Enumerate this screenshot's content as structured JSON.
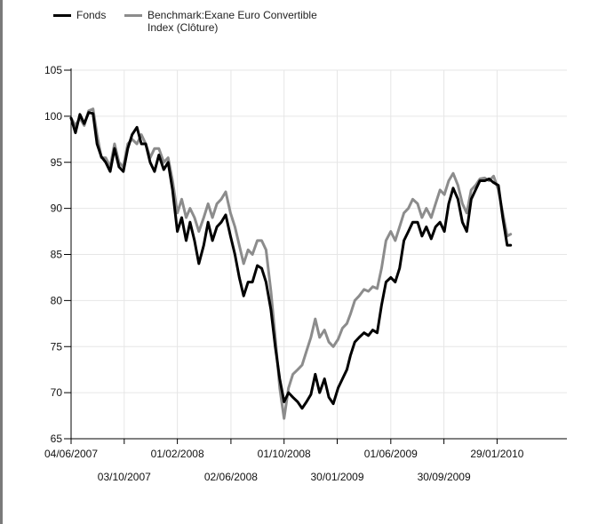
{
  "chart_data": {
    "type": "line",
    "ylim": [
      65,
      105
    ],
    "yticks": [
      "65",
      "70",
      "75",
      "80",
      "85",
      "90",
      "95",
      "100",
      "105"
    ],
    "x_start": "04/06/2007",
    "x_end": "07/07/2010",
    "xticks_row1": [
      "04/06/2007",
      "01/02/2008",
      "01/10/2008",
      "01/06/2009",
      "29/01/2010"
    ],
    "xticks_row2": [
      "03/10/2007",
      "02/06/2008",
      "30/01/2009",
      "30/09/2009"
    ],
    "grid": true,
    "legend_position": "top-left",
    "series": [
      {
        "name": "Fonds",
        "color": "#000000",
        "points": [
          [
            "04/06/2007",
            99.8
          ],
          [
            "14/06/2007",
            98.2
          ],
          [
            "24/06/2007",
            100.2
          ],
          [
            "04/07/2007",
            99.2
          ],
          [
            "14/07/2007",
            100.4
          ],
          [
            "24/07/2007",
            100.3
          ],
          [
            "02/08/2007",
            97.0
          ],
          [
            "12/08/2007",
            95.6
          ],
          [
            "22/08/2007",
            95.0
          ],
          [
            "01/09/2007",
            94.0
          ],
          [
            "11/09/2007",
            96.5
          ],
          [
            "21/09/2007",
            94.5
          ],
          [
            "01/10/2007",
            94.0
          ],
          [
            "11/10/2007",
            96.5
          ],
          [
            "21/10/2007",
            98.0
          ],
          [
            "01/11/2007",
            98.8
          ],
          [
            "11/11/2007",
            97.0
          ],
          [
            "21/11/2007",
            97.0
          ],
          [
            "01/12/2007",
            95.0
          ],
          [
            "11/12/2007",
            94.0
          ],
          [
            "21/12/2007",
            95.8
          ],
          [
            "01/01/2008",
            94.2
          ],
          [
            "11/01/2008",
            95.0
          ],
          [
            "21/01/2008",
            92.0
          ],
          [
            "01/02/2008",
            87.5
          ],
          [
            "11/02/2008",
            89.0
          ],
          [
            "21/02/2008",
            86.5
          ],
          [
            "01/03/2008",
            88.5
          ],
          [
            "11/03/2008",
            86.5
          ],
          [
            "21/03/2008",
            84.0
          ],
          [
            "01/04/2008",
            86.0
          ],
          [
            "11/04/2008",
            88.5
          ],
          [
            "21/04/2008",
            86.5
          ],
          [
            "01/05/2008",
            88.0
          ],
          [
            "11/05/2008",
            88.5
          ],
          [
            "21/05/2008",
            89.3
          ],
          [
            "01/06/2008",
            87.0
          ],
          [
            "11/06/2008",
            85.0
          ],
          [
            "21/06/2008",
            82.5
          ],
          [
            "01/07/2008",
            80.5
          ],
          [
            "11/07/2008",
            82.0
          ],
          [
            "21/07/2008",
            82.0
          ],
          [
            "01/08/2008",
            83.8
          ],
          [
            "11/08/2008",
            83.5
          ],
          [
            "21/08/2008",
            82.0
          ],
          [
            "01/09/2008",
            79.0
          ],
          [
            "11/09/2008",
            75.0
          ],
          [
            "21/09/2008",
            71.5
          ],
          [
            "01/10/2008",
            69.0
          ],
          [
            "11/10/2008",
            70.0
          ],
          [
            "21/10/2008",
            69.5
          ],
          [
            "01/11/2008",
            69.0
          ],
          [
            "11/11/2008",
            68.3
          ],
          [
            "21/11/2008",
            69.0
          ],
          [
            "01/12/2008",
            69.8
          ],
          [
            "11/12/2008",
            72.0
          ],
          [
            "21/12/2008",
            70.0
          ],
          [
            "01/01/2009",
            71.5
          ],
          [
            "11/01/2009",
            69.5
          ],
          [
            "21/01/2009",
            68.8
          ],
          [
            "01/02/2009",
            70.5
          ],
          [
            "11/02/2009",
            71.5
          ],
          [
            "21/02/2009",
            72.5
          ],
          [
            "01/03/2009",
            74.0
          ],
          [
            "11/03/2009",
            75.5
          ],
          [
            "21/03/2009",
            76.0
          ],
          [
            "01/04/2009",
            76.5
          ],
          [
            "11/04/2009",
            76.2
          ],
          [
            "21/04/2009",
            76.8
          ],
          [
            "01/05/2009",
            76.5
          ],
          [
            "11/05/2009",
            79.5
          ],
          [
            "21/05/2009",
            82.0
          ],
          [
            "01/06/2009",
            82.5
          ],
          [
            "11/06/2009",
            82.0
          ],
          [
            "21/06/2009",
            83.5
          ],
          [
            "01/07/2009",
            86.5
          ],
          [
            "11/07/2009",
            87.5
          ],
          [
            "21/07/2009",
            88.5
          ],
          [
            "01/08/2009",
            88.5
          ],
          [
            "11/08/2009",
            87.0
          ],
          [
            "21/08/2009",
            88.0
          ],
          [
            "01/09/2009",
            86.7
          ],
          [
            "11/09/2009",
            88.0
          ],
          [
            "21/09/2009",
            88.5
          ],
          [
            "01/10/2009",
            87.5
          ],
          [
            "11/10/2009",
            90.5
          ],
          [
            "21/10/2009",
            92.2
          ],
          [
            "01/11/2009",
            91.0
          ],
          [
            "11/11/2009",
            88.5
          ],
          [
            "21/11/2009",
            87.5
          ],
          [
            "01/12/2009",
            91.0
          ],
          [
            "11/12/2009",
            92.0
          ],
          [
            "21/12/2009",
            93.0
          ],
          [
            "01/01/2010",
            93.0
          ],
          [
            "11/01/2010",
            93.2
          ],
          [
            "21/01/2010",
            92.8
          ],
          [
            "01/02/2010",
            92.5
          ],
          [
            "11/02/2010",
            89.0
          ],
          [
            "21/02/2010",
            86.0
          ],
          [
            "01/03/2010",
            86.0
          ]
        ]
      },
      {
        "name": "Benchmark:Exane Euro Convertible Index (Clôture)",
        "color": "#8c8c8c",
        "points": [
          [
            "04/06/2007",
            99.8
          ],
          [
            "14/06/2007",
            99.0
          ],
          [
            "24/06/2007",
            99.8
          ],
          [
            "04/07/2007",
            99.0
          ],
          [
            "14/07/2007",
            100.6
          ],
          [
            "24/07/2007",
            100.8
          ],
          [
            "02/08/2007",
            98.0
          ],
          [
            "12/08/2007",
            95.5
          ],
          [
            "22/08/2007",
            95.5
          ],
          [
            "01/09/2007",
            94.5
          ],
          [
            "11/09/2007",
            97.0
          ],
          [
            "21/09/2007",
            95.0
          ],
          [
            "01/10/2007",
            94.5
          ],
          [
            "11/10/2007",
            97.0
          ],
          [
            "21/10/2007",
            97.5
          ],
          [
            "01/11/2007",
            97.0
          ],
          [
            "11/11/2007",
            98.0
          ],
          [
            "21/11/2007",
            97.0
          ],
          [
            "01/12/2007",
            95.5
          ],
          [
            "11/12/2007",
            96.5
          ],
          [
            "21/12/2007",
            96.5
          ],
          [
            "01/01/2008",
            95.0
          ],
          [
            "11/01/2008",
            95.5
          ],
          [
            "21/01/2008",
            93.0
          ],
          [
            "01/02/2008",
            89.5
          ],
          [
            "11/02/2008",
            91.0
          ],
          [
            "21/02/2008",
            89.0
          ],
          [
            "01/03/2008",
            90.0
          ],
          [
            "11/03/2008",
            89.0
          ],
          [
            "21/03/2008",
            87.5
          ],
          [
            "01/04/2008",
            89.0
          ],
          [
            "11/04/2008",
            90.5
          ],
          [
            "21/04/2008",
            89.0
          ],
          [
            "01/05/2008",
            90.5
          ],
          [
            "11/05/2008",
            91.0
          ],
          [
            "21/05/2008",
            91.8
          ],
          [
            "01/06/2008",
            89.5
          ],
          [
            "11/06/2008",
            88.0
          ],
          [
            "21/06/2008",
            86.0
          ],
          [
            "01/07/2008",
            84.0
          ],
          [
            "11/07/2008",
            85.5
          ],
          [
            "21/07/2008",
            85.0
          ],
          [
            "01/08/2008",
            86.5
          ],
          [
            "11/08/2008",
            86.5
          ],
          [
            "21/08/2008",
            85.5
          ],
          [
            "01/09/2008",
            81.0
          ],
          [
            "11/09/2008",
            76.0
          ],
          [
            "21/09/2008",
            70.5
          ],
          [
            "01/10/2008",
            67.2
          ],
          [
            "11/10/2008",
            70.5
          ],
          [
            "21/10/2008",
            72.0
          ],
          [
            "01/11/2008",
            72.5
          ],
          [
            "11/11/2008",
            73.0
          ],
          [
            "21/11/2008",
            74.5
          ],
          [
            "01/12/2008",
            76.0
          ],
          [
            "11/12/2008",
            78.0
          ],
          [
            "21/12/2008",
            76.0
          ],
          [
            "01/01/2009",
            76.8
          ],
          [
            "11/01/2009",
            75.5
          ],
          [
            "21/01/2009",
            75.0
          ],
          [
            "01/02/2009",
            75.8
          ],
          [
            "11/02/2009",
            77.0
          ],
          [
            "21/02/2009",
            77.5
          ],
          [
            "01/03/2009",
            78.5
          ],
          [
            "11/03/2009",
            80.0
          ],
          [
            "21/03/2009",
            80.5
          ],
          [
            "01/04/2009",
            81.2
          ],
          [
            "11/04/2009",
            81.0
          ],
          [
            "21/04/2009",
            81.5
          ],
          [
            "01/05/2009",
            81.3
          ],
          [
            "11/05/2009",
            83.5
          ],
          [
            "21/05/2009",
            86.5
          ],
          [
            "01/06/2009",
            87.5
          ],
          [
            "11/06/2009",
            86.5
          ],
          [
            "21/06/2009",
            88.0
          ],
          [
            "01/07/2009",
            89.5
          ],
          [
            "11/07/2009",
            90.0
          ],
          [
            "21/07/2009",
            91.0
          ],
          [
            "01/08/2009",
            90.5
          ],
          [
            "11/08/2009",
            89.0
          ],
          [
            "21/08/2009",
            90.0
          ],
          [
            "01/09/2009",
            89.0
          ],
          [
            "11/09/2009",
            90.5
          ],
          [
            "21/09/2009",
            92.0
          ],
          [
            "01/10/2009",
            91.5
          ],
          [
            "11/10/2009",
            93.0
          ],
          [
            "21/10/2009",
            93.8
          ],
          [
            "01/11/2009",
            92.5
          ],
          [
            "11/11/2009",
            90.5
          ],
          [
            "21/11/2009",
            89.5
          ],
          [
            "01/12/2009",
            92.0
          ],
          [
            "11/12/2009",
            92.5
          ],
          [
            "21/12/2009",
            93.2
          ],
          [
            "01/01/2010",
            93.3
          ],
          [
            "11/01/2010",
            93.0
          ],
          [
            "21/01/2010",
            93.5
          ],
          [
            "01/02/2010",
            92.0
          ],
          [
            "11/02/2010",
            89.5
          ],
          [
            "21/02/2010",
            87.0
          ],
          [
            "01/03/2010",
            87.2
          ]
        ]
      }
    ]
  }
}
